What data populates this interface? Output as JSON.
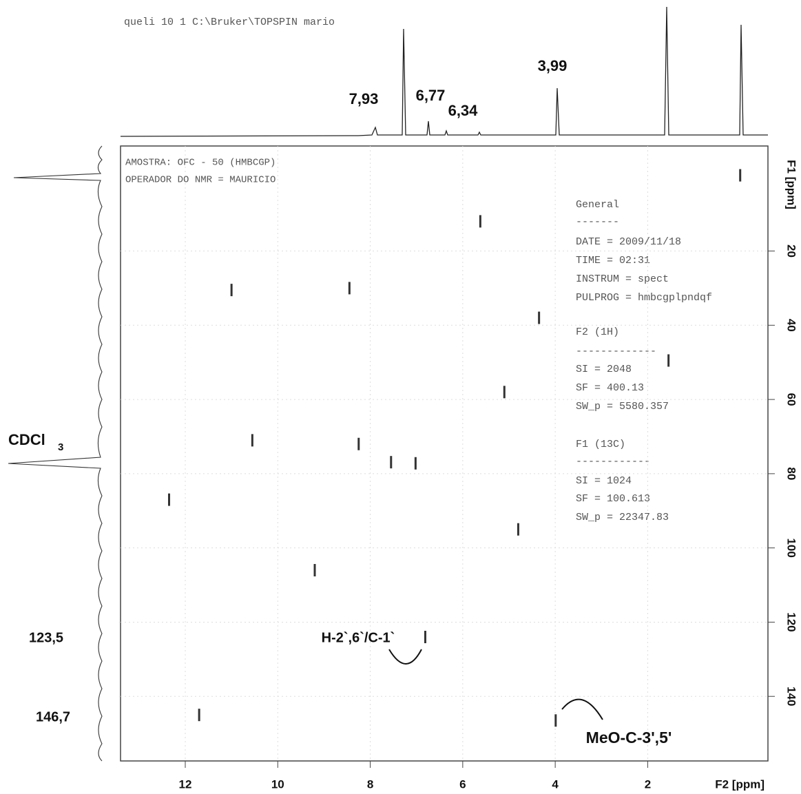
{
  "chart_data": {
    "type": "scatter",
    "header": "queli  10  1  C:\\Bruker\\TOPSPIN  mario",
    "sample_lines": [
      "AMOSTRA: OFC - 50  (HMBCGP)",
      "OPERADOR DO NMR = MAURICIO"
    ],
    "parameters": [
      "General",
      "-------",
      "DATE = 2009/11/18",
      "TIME = 02:31",
      "INSTRUM = spect",
      "PULPROG = hmbcgplpndqf",
      "F2 (1H)",
      "-------------",
      "SI =  2048",
      "SF =  400.13",
      "SW_p =  5580.357",
      "F1 (13C)",
      "------------",
      "SI =  1024",
      "SF =  100.613",
      "SW_p =  22347.83"
    ],
    "x_label": "F2 [ppm]",
    "y_label": "F1 [ppm]",
    "annotations": [
      "7,93",
      "6,77",
      "6,34",
      "3,99",
      "CDCl",
      "3",
      "123,5",
      "146,7",
      "H-2`,6`/C-1`",
      "MeO-C-3',5'"
    ],
    "x": [
      0.0,
      7.55,
      7.02,
      3.99,
      6.81,
      5.62,
      8.45,
      11.0,
      12.35,
      9.2,
      11.7,
      5.1,
      10.55,
      8.25,
      4.35,
      1.55,
      4.8
    ],
    "values": [
      -0.4,
      76.9,
      77.2,
      146.5,
      124,
      12,
      30,
      30.5,
      87,
      106,
      145,
      58,
      71,
      72,
      38,
      49.5,
      95
    ],
    "color": "#333333",
    "xlim": [
      13.4,
      -0.6
    ],
    "ylim": [
      -8.3,
      157.4
    ],
    "xticks": [
      12,
      10,
      8,
      6,
      4,
      2
    ],
    "yticks": [
      20,
      40,
      60,
      80,
      100,
      120,
      140
    ],
    "grid": true
  }
}
